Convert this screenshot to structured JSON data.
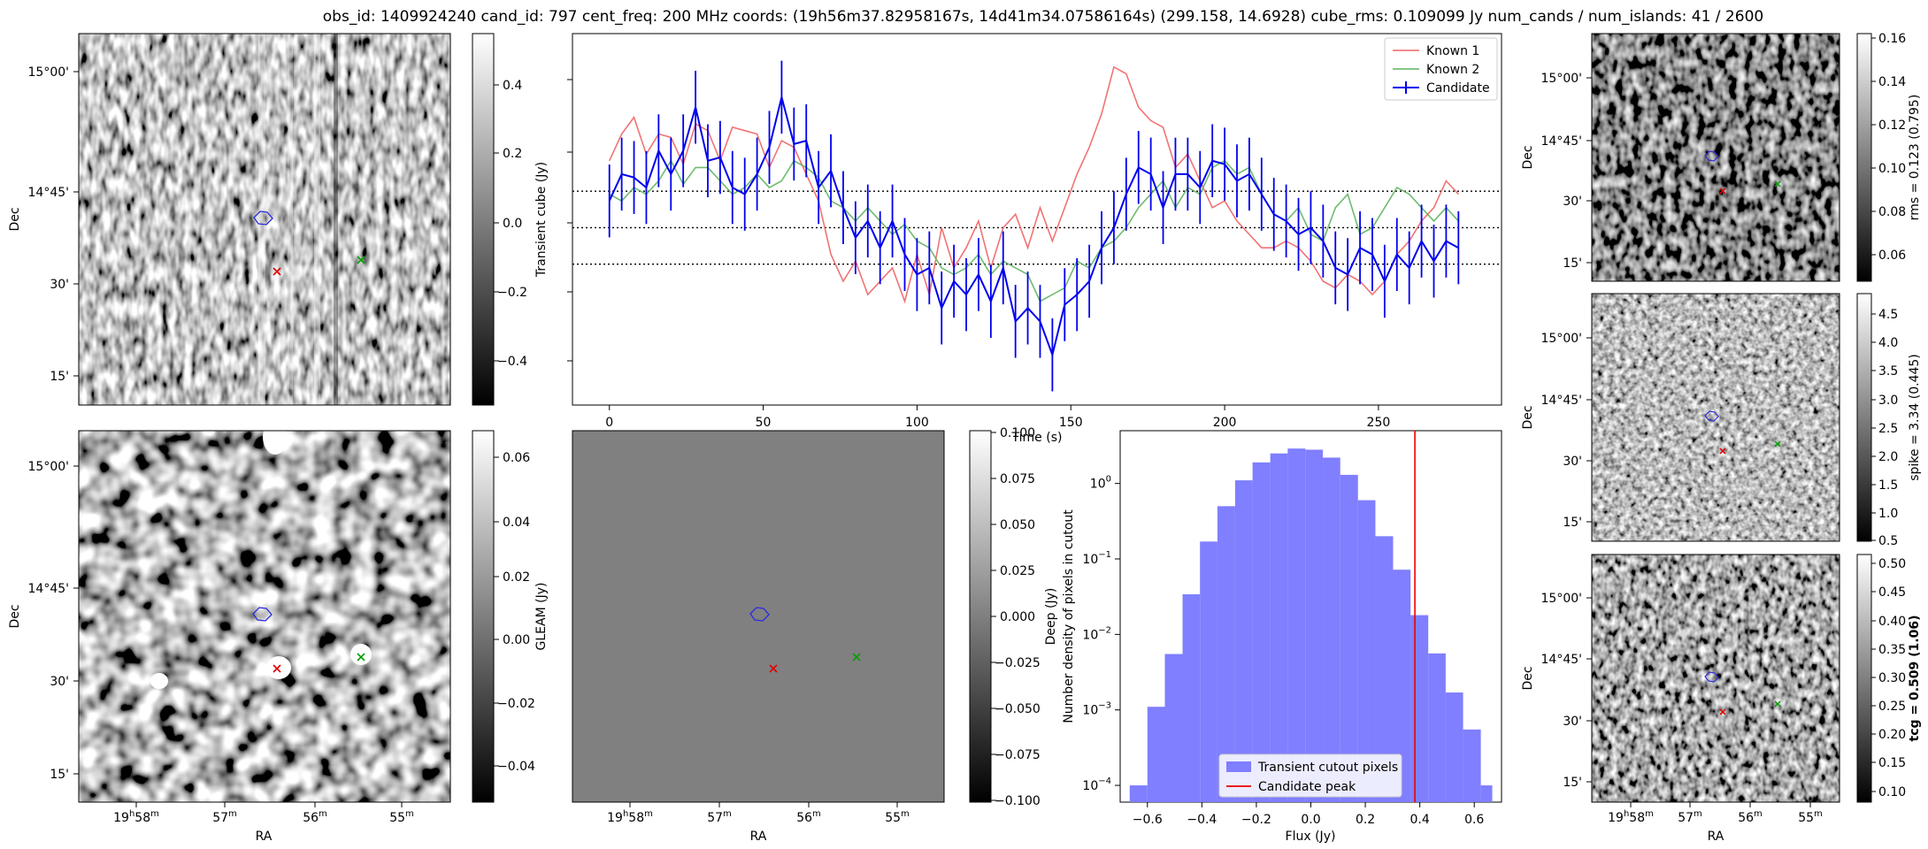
{
  "figure": {
    "title": "obs_id: 1409924240 cand_id: 797 cent_freq: 200 MHz coords: (19h56m37.82958167s, 14d41m34.07586164s) (299.158, 14.6928) cube_rms: 0.109099 Jy num_cands / num_islands: 41 / 2600"
  },
  "colors": {
    "known1": "#f06464",
    "known2": "#5fb45f",
    "candidate": "#0000ee",
    "hist": "#7f7fff",
    "peak": "#ee0000"
  },
  "chart_data": [
    {
      "id": "transient-image",
      "type": "heatmap",
      "xlabel": "",
      "ylabel": "Dec",
      "ytick_labels": [
        "15°00'",
        "14°45'",
        "30'",
        "15'"
      ],
      "colorbar_label": "Transient cube (Jy)",
      "colorbar_ticks": [
        "0.4",
        "0.2",
        "0.0",
        "−0.2",
        "−0.4"
      ],
      "clim": [
        -0.53,
        0.53
      ],
      "markers": [
        "candidate-contour",
        "red-x",
        "green-x"
      ]
    },
    {
      "id": "gleam-image",
      "type": "heatmap",
      "xlabel": "RA",
      "ylabel": "Dec",
      "xtick_labels": [
        "19h58m",
        "57m",
        "56m",
        "55m"
      ],
      "ytick_labels": [
        "15°00'",
        "14°45'",
        "30'",
        "15'"
      ],
      "colorbar_label": "GLEAM (Jy)",
      "colorbar_ticks": [
        "0.06",
        "0.04",
        "0.02",
        "0.00",
        "−0.02",
        "−0.04"
      ],
      "clim": [
        -0.05,
        0.065
      ]
    },
    {
      "id": "deep-image",
      "type": "heatmap",
      "xlabel": "RA",
      "ylabel": "",
      "xtick_labels": [
        "19h58m",
        "57m",
        "56m",
        "55m"
      ],
      "colorbar_label": "Deep (Jy)",
      "colorbar_ticks": [
        "0.100",
        "0.075",
        "0.050",
        "0.025",
        "0.000",
        "−0.025",
        "−0.050",
        "−0.075",
        "−0.100"
      ],
      "clim": [
        -0.1,
        0.1
      ]
    },
    {
      "id": "rms-image",
      "type": "heatmap",
      "ylabel": "Dec",
      "ytick_labels": [
        "15°00'",
        "14°45'",
        "30'",
        "15'"
      ],
      "colorbar_label": "rms = 0.123 (0.795)",
      "colorbar_ticks": [
        "0.16",
        "0.14",
        "0.12",
        "0.10",
        "0.08",
        "0.06"
      ],
      "clim": [
        0.048,
        0.162
      ]
    },
    {
      "id": "spike-image",
      "type": "heatmap",
      "ylabel": "Dec",
      "ytick_labels": [
        "15°00'",
        "14°45'",
        "30'",
        "15'"
      ],
      "colorbar_label": "spike = 3.34 (0.445)",
      "colorbar_ticks": [
        "4.5",
        "4.0",
        "3.5",
        "3.0",
        "2.5",
        "2.0",
        "1.5",
        "1.0",
        "0.5"
      ],
      "clim": [
        0.45,
        4.8
      ]
    },
    {
      "id": "tcg-image",
      "type": "heatmap",
      "xlabel": "RA",
      "ylabel": "Dec",
      "xtick_labels": [
        "19h58m",
        "57m",
        "56m",
        "55m"
      ],
      "ytick_labels": [
        "15°00'",
        "14°45'",
        "30'",
        "15'"
      ],
      "colorbar_label": "tcg = 0.509 (1.06)",
      "colorbar_ticks": [
        "0.50",
        "0.45",
        "0.40",
        "0.35",
        "0.30",
        "0.25",
        "0.20",
        "0.15",
        "0.10"
      ],
      "clim": [
        0.085,
        0.52
      ]
    },
    {
      "id": "lightcurve",
      "type": "line",
      "xlabel": "Time (s)",
      "xticks": [
        0,
        50,
        100,
        150,
        200,
        250
      ],
      "xlim": [
        -12,
        290
      ],
      "ylim": [
        -0.53,
        0.58
      ],
      "hlines": [
        0.109,
        0,
        -0.109
      ],
      "legend": [
        "Known 1",
        "Known 2",
        "Candidate"
      ],
      "legend_position": "top-right",
      "x": [
        0,
        4,
        8,
        12,
        16,
        20,
        24,
        28,
        32,
        36,
        40,
        44,
        48,
        52,
        56,
        60,
        64,
        68,
        72,
        76,
        80,
        84,
        88,
        92,
        96,
        100,
        104,
        108,
        112,
        116,
        120,
        124,
        128,
        132,
        136,
        140,
        144,
        148,
        152,
        156,
        160,
        164,
        168,
        172,
        176,
        180,
        184,
        188,
        192,
        196,
        200,
        204,
        208,
        212,
        216,
        220,
        224,
        228,
        232,
        236,
        240,
        244,
        248,
        252,
        256,
        260,
        264,
        268,
        272,
        276
      ],
      "series": [
        {
          "name": "Known 1",
          "values": [
            0.2,
            0.28,
            0.33,
            0.22,
            0.28,
            0.27,
            0.19,
            0.31,
            0.29,
            0.2,
            0.3,
            0.29,
            0.28,
            0.18,
            0.26,
            0.24,
            0.16,
            0.08,
            -0.08,
            -0.16,
            -0.1,
            -0.2,
            -0.16,
            -0.12,
            -0.22,
            -0.08,
            -0.2,
            0,
            -0.12,
            -0.06,
            0.02,
            -0.12,
            0,
            0.04,
            -0.06,
            0.06,
            -0.04,
            0.06,
            0.16,
            0.24,
            0.34,
            0.48,
            0.46,
            0.36,
            0.32,
            0.3,
            0.18,
            0.22,
            0.14,
            0.06,
            0.08,
            0.02,
            -0.02,
            -0.06,
            -0.06,
            -0.04,
            -0.06,
            -0.1,
            -0.16,
            -0.18,
            -0.14,
            -0.16,
            -0.2,
            -0.16,
            -0.08,
            -0.04,
            0.02,
            0.06,
            0.14,
            0.1
          ]
        },
        {
          "name": "Known 2",
          "values": [
            0.1,
            0.08,
            0.12,
            0.1,
            0.14,
            0.2,
            0.13,
            0.18,
            0.18,
            0.14,
            0.1,
            0.12,
            0.16,
            0.12,
            0.14,
            0.2,
            0.18,
            0.15,
            0.08,
            0.06,
            0.02,
            0.06,
            0.02,
            -0.02,
            0.01,
            -0.04,
            -0.06,
            -0.12,
            -0.14,
            -0.12,
            -0.08,
            -0.14,
            -0.1,
            -0.12,
            -0.14,
            -0.22,
            -0.2,
            -0.18,
            -0.1,
            -0.12,
            -0.06,
            -0.04,
            0,
            0.06,
            0.1,
            0.14,
            0.06,
            0.12,
            0.1,
            0.18,
            0.2,
            0.16,
            0.18,
            0.1,
            0.04,
            0.02,
            0.06,
            -0.02,
            -0.04,
            0.06,
            0.1,
            -0.02,
            0,
            0.06,
            0.12,
            0.1,
            0.06,
            0.02,
            0.06,
            0.02
          ]
        },
        {
          "name": "Candidate",
          "errors": 0.109,
          "values": [
            0.08,
            0.16,
            0.15,
            0.12,
            0.23,
            0.16,
            0.23,
            0.36,
            0.2,
            0.21,
            0.12,
            0.1,
            0.16,
            0.24,
            0.39,
            0.25,
            0.26,
            0.12,
            0.17,
            0.06,
            -0.03,
            0.02,
            -0.06,
            0.02,
            -0.08,
            -0.14,
            -0.12,
            -0.24,
            -0.16,
            -0.2,
            -0.14,
            -0.22,
            -0.12,
            -0.28,
            -0.24,
            -0.28,
            -0.38,
            -0.23,
            -0.2,
            -0.16,
            -0.06,
            0,
            0.1,
            0.18,
            0.16,
            0.06,
            0.16,
            0.16,
            0.12,
            0.2,
            0.19,
            0.14,
            0.16,
            0.1,
            0.04,
            0.02,
            -0.02,
            0,
            -0.04,
            -0.12,
            -0.14,
            -0.06,
            -0.08,
            -0.16,
            -0.08,
            -0.12,
            -0.04,
            -0.1,
            -0.04,
            -0.06
          ]
        }
      ]
    },
    {
      "id": "flux-histogram",
      "type": "bar",
      "xlabel": "Flux (Jy)",
      "ylabel": "Number density of pixels in cutout",
      "yscale": "log",
      "ylim": [
        6e-05,
        5
      ],
      "xlim": [
        -0.7,
        0.7
      ],
      "xtick_values": [
        -0.6,
        -0.4,
        -0.2,
        0.0,
        0.2,
        0.4,
        0.6
      ],
      "xtick_labels": [
        "−0.6",
        "−0.4",
        "−0.2",
        "0.0",
        "0.2",
        "0.4",
        "0.6"
      ],
      "ytick_values": [
        0.0001,
        0.001,
        0.01,
        0.1,
        1
      ],
      "ytick_bases": [
        "10",
        "10",
        "10",
        "10",
        "10"
      ],
      "ytick_exps": [
        "−4",
        "−3",
        "−2",
        "−1",
        "0"
      ],
      "bin_edges": [
        -0.665,
        -0.6,
        -0.536,
        -0.471,
        -0.407,
        -0.343,
        -0.278,
        -0.214,
        -0.149,
        -0.085,
        -0.02,
        0.044,
        0.108,
        0.173,
        0.237,
        0.302,
        0.366,
        0.431,
        0.495,
        0.559,
        0.624,
        0.666
      ],
      "values": [
        0.0001,
        0.0011,
        0.0055,
        0.034,
        0.17,
        0.5,
        1.1,
        1.9,
        2.5,
        2.9,
        2.8,
        2.2,
        1.3,
        0.6,
        0.2,
        0.072,
        0.018,
        0.0056,
        0.0017,
        0.00055,
        0.0001
      ],
      "peak_line": 0.382,
      "legend": [
        "Transient cutout pixels",
        "Candidate peak"
      ],
      "legend_position": "lower-center"
    }
  ]
}
